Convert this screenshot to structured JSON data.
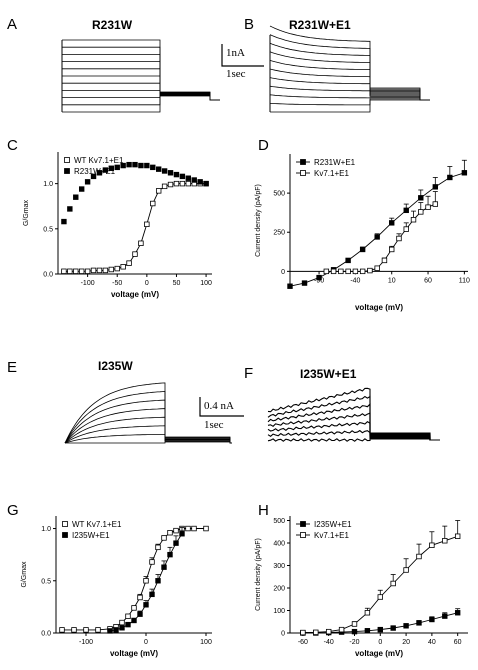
{
  "panels": {
    "A": {
      "label": "A",
      "title": "R231W",
      "trace_count": 11
    },
    "B": {
      "label": "B",
      "title": "R231W+E1",
      "trace_count": 11
    },
    "C": {
      "label": "C"
    },
    "D": {
      "label": "D"
    },
    "E": {
      "label": "E",
      "title": "I235W",
      "trace_count": 8
    },
    "F": {
      "label": "F",
      "title": "I235W+E1",
      "trace_count": 7
    },
    "G": {
      "label": "G"
    },
    "H": {
      "label": "H"
    }
  },
  "scalebars": {
    "AB": {
      "current": "1nA",
      "time": "1sec"
    },
    "EF": {
      "current": "0.4 nA",
      "time": "1sec"
    }
  },
  "chart_data": [
    {
      "id": "C",
      "type": "scatter",
      "xlabel": "voltage (mV)",
      "ylabel": "G/Gmax",
      "xlim": [
        -150,
        110
      ],
      "ylim": [
        0,
        1.35
      ],
      "xticks": [
        -100,
        -50,
        0,
        50,
        100
      ],
      "yticks": [
        0.0,
        0.5,
        1.0
      ],
      "ytick_labels": [
        "0.0",
        "0.5",
        "1.0"
      ],
      "legend_position": "top-left",
      "series": [
        {
          "name": "WT Kv7.1+E1",
          "marker": "open-square",
          "fit": true,
          "x": [
            -140,
            -130,
            -120,
            -110,
            -100,
            -90,
            -80,
            -70,
            -60,
            -50,
            -40,
            -30,
            -20,
            -10,
            0,
            10,
            20,
            30,
            40,
            50,
            60,
            70,
            80,
            90,
            100
          ],
          "y": [
            0.03,
            0.03,
            0.03,
            0.03,
            0.03,
            0.04,
            0.04,
            0.04,
            0.05,
            0.06,
            0.08,
            0.12,
            0.22,
            0.34,
            0.55,
            0.78,
            0.92,
            0.97,
            0.99,
            1.0,
            1.0,
            1.0,
            1.0,
            1.0,
            1.0
          ]
        },
        {
          "name": "R231W+E1",
          "marker": "filled-square",
          "fit": false,
          "x": [
            -140,
            -130,
            -120,
            -110,
            -100,
            -90,
            -80,
            -70,
            -60,
            -50,
            -40,
            -30,
            -20,
            -10,
            0,
            10,
            20,
            30,
            40,
            50,
            60,
            70,
            80,
            90,
            100
          ],
          "y": [
            0.58,
            0.72,
            0.85,
            0.94,
            1.02,
            1.08,
            1.12,
            1.15,
            1.17,
            1.18,
            1.2,
            1.21,
            1.21,
            1.2,
            1.2,
            1.18,
            1.16,
            1.14,
            1.12,
            1.1,
            1.08,
            1.06,
            1.04,
            1.02,
            1.0
          ]
        }
      ]
    },
    {
      "id": "D",
      "type": "line",
      "xlabel": "voltage (mV)",
      "ylabel": "Current density (pA/pF)",
      "xlim": [
        -130,
        115
      ],
      "ylim": [
        -100,
        750
      ],
      "xticks": [
        -90,
        -40,
        10,
        60,
        110
      ],
      "yticks": [
        0,
        250,
        500
      ],
      "legend_position": "top-left",
      "series": [
        {
          "name": "R231W+E1",
          "marker": "filled-square",
          "x": [
            -130,
            -110,
            -90,
            -70,
            -50,
            -30,
            -10,
            10,
            30,
            50,
            70,
            90,
            110
          ],
          "y": [
            -95,
            -75,
            -40,
            10,
            70,
            140,
            220,
            310,
            390,
            470,
            540,
            600,
            630
          ],
          "err": [
            10,
            8,
            8,
            10,
            12,
            15,
            20,
            30,
            40,
            50,
            60,
            70,
            80
          ]
        },
        {
          "name": "Kv7.1+E1",
          "marker": "open-square",
          "x": [
            -80,
            -70,
            -60,
            -50,
            -40,
            -30,
            -20,
            -10,
            0,
            10,
            20,
            30,
            40,
            50,
            60,
            70
          ],
          "y": [
            0,
            0,
            0,
            0,
            0,
            0,
            5,
            20,
            70,
            140,
            210,
            270,
            330,
            380,
            410,
            430
          ],
          "err": [
            3,
            3,
            3,
            3,
            3,
            3,
            5,
            8,
            15,
            20,
            30,
            40,
            55,
            60,
            70,
            80
          ]
        }
      ]
    },
    {
      "id": "G",
      "type": "scatter",
      "xlabel": "voltage (mV)",
      "ylabel": "G/Gmax",
      "xlim": [
        -150,
        110
      ],
      "ylim": [
        0,
        1.12
      ],
      "xticks": [
        -100,
        0,
        100
      ],
      "yticks": [
        0.0,
        0.5,
        1.0
      ],
      "ytick_labels": [
        "0.0",
        "0.5",
        "1.0"
      ],
      "legend_position": "top-left",
      "series": [
        {
          "name": "WT Kv7.1+E1",
          "marker": "open-square",
          "fit": true,
          "x": [
            -140,
            -120,
            -100,
            -80,
            -60,
            -50,
            -40,
            -30,
            -20,
            -10,
            0,
            10,
            20,
            30,
            40,
            50,
            60,
            70,
            80,
            100
          ],
          "y": [
            0.03,
            0.03,
            0.03,
            0.03,
            0.04,
            0.06,
            0.1,
            0.16,
            0.24,
            0.34,
            0.5,
            0.68,
            0.82,
            0.91,
            0.96,
            0.98,
            1.0,
            1.0,
            1.0,
            1.0
          ],
          "err": [
            0,
            0,
            0,
            0,
            0,
            0,
            0,
            0,
            0.02,
            0.03,
            0.04,
            0.04,
            0.03,
            0.02,
            0,
            0,
            0,
            0,
            0,
            0
          ]
        },
        {
          "name": "I235W+E1",
          "marker": "filled-square",
          "fit": true,
          "x": [
            -60,
            -50,
            -40,
            -30,
            -20,
            -10,
            0,
            10,
            20,
            30,
            40,
            50,
            60
          ],
          "y": [
            0.02,
            0.03,
            0.05,
            0.08,
            0.12,
            0.18,
            0.27,
            0.37,
            0.5,
            0.63,
            0.75,
            0.86,
            0.95
          ],
          "err": [
            0,
            0,
            0,
            0,
            0.02,
            0.03,
            0.04,
            0.05,
            0.06,
            0.06,
            0.07,
            0.07,
            0.06
          ]
        }
      ]
    },
    {
      "id": "H",
      "type": "line",
      "xlabel": "voltage (mV)",
      "ylabel": "Current density (pA/pF)",
      "xlim": [
        -70,
        68
      ],
      "ylim": [
        0,
        520
      ],
      "xticks": [
        -60,
        -40,
        -20,
        0,
        20,
        40,
        60
      ],
      "yticks": [
        0,
        100,
        200,
        300,
        400,
        500
      ],
      "legend_position": "top-left",
      "series": [
        {
          "name": "I235W+E1",
          "marker": "filled-square",
          "x": [
            -60,
            -50,
            -40,
            -30,
            -20,
            -10,
            0,
            10,
            20,
            30,
            40,
            50,
            60
          ],
          "y": [
            0,
            0,
            2,
            4,
            6,
            10,
            15,
            22,
            32,
            45,
            60,
            75,
            90
          ],
          "err": [
            0,
            0,
            0,
            0,
            2,
            3,
            4,
            5,
            8,
            10,
            12,
            15,
            18
          ]
        },
        {
          "name": "Kv7.1+E1",
          "marker": "open-square",
          "x": [
            -60,
            -50,
            -40,
            -30,
            -20,
            -10,
            0,
            10,
            20,
            30,
            40,
            50,
            60
          ],
          "y": [
            2,
            3,
            6,
            15,
            40,
            90,
            160,
            220,
            280,
            340,
            390,
            410,
            430
          ],
          "err": [
            0,
            0,
            2,
            5,
            10,
            20,
            30,
            40,
            50,
            55,
            60,
            65,
            70
          ]
        }
      ]
    }
  ]
}
